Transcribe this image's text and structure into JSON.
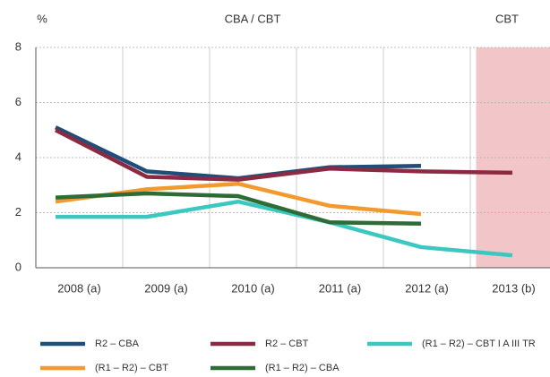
{
  "chart_data": {
    "type": "line",
    "header": {
      "unit": "%",
      "left": "CBA / CBT",
      "right": "CBT"
    },
    "categories": [
      "2008 (a)",
      "2009 (a)",
      "2010 (a)",
      "2011 (a)",
      "2012 (a)",
      "2013 (b)"
    ],
    "series": [
      {
        "name": "R2 – CBA",
        "color": "#1f4e79",
        "values": [
          5.1,
          3.5,
          3.25,
          3.65,
          3.7,
          null
        ]
      },
      {
        "name": "R2 – CBT",
        "color": "#8c2a44",
        "values": [
          5.0,
          3.3,
          3.2,
          3.6,
          3.5,
          3.45
        ]
      },
      {
        "name": "(R1 – R2) – CBT I A III TR",
        "color": "#3cc8c0",
        "values": [
          1.85,
          1.85,
          2.4,
          1.65,
          0.75,
          0.45
        ]
      },
      {
        "name": "(R1 – R2) – CBT",
        "color": "#f39a2e",
        "values": [
          2.4,
          2.85,
          3.05,
          2.25,
          1.95,
          null
        ]
      },
      {
        "name": "(R1 – R2) – CBA",
        "color": "#2e6b35",
        "values": [
          2.55,
          2.7,
          2.6,
          1.65,
          1.6,
          null
        ]
      }
    ],
    "ylim": [
      0,
      8
    ],
    "yticks": [
      0,
      2,
      4,
      6,
      8
    ],
    "grid": true,
    "shaded_category": 5,
    "shade_color": "#f2c6c8"
  }
}
